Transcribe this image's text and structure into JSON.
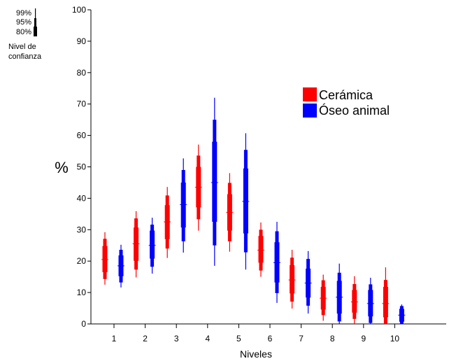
{
  "chart_data": {
    "type": "confidence-interval-bars",
    "title": "",
    "xlabel": "Niveles",
    "ylabel": "%",
    "ylim": [
      0,
      100
    ],
    "yticks": [
      0,
      10,
      20,
      30,
      40,
      50,
      60,
      70,
      80,
      90,
      100
    ],
    "categories": [
      "1",
      "2",
      "3",
      "4",
      "5",
      "6",
      "7",
      "8",
      "9",
      "10"
    ],
    "confidence_key": {
      "title": "Nivel de confianza",
      "title_lines": [
        "Nivel de",
        "confianza"
      ],
      "levels": [
        "99%",
        "95%",
        "80%"
      ]
    },
    "series": [
      {
        "name": "Cerámica",
        "color": "#ff0000",
        "points": [
          {
            "center": 20.5,
            "ci80": [
              16.5,
              24.8
            ],
            "ci95": [
              14.3,
              27.1
            ],
            "ci99": [
              12.5,
              29.2
            ]
          },
          {
            "center": 25.5,
            "ci80": [
              20.1,
              30.7
            ],
            "ci95": [
              17.3,
              33.6
            ],
            "ci99": [
              14.8,
              35.9
            ]
          },
          {
            "center": 32.5,
            "ci80": [
              27.0,
              37.8
            ],
            "ci95": [
              24.0,
              40.9
            ],
            "ci99": [
              21.0,
              43.6
            ]
          },
          {
            "center": 43.5,
            "ci80": [
              37.1,
              50.0
            ],
            "ci95": [
              33.3,
              53.6
            ],
            "ci99": [
              29.7,
              57.1
            ]
          },
          {
            "center": 35.5,
            "ci80": [
              29.7,
              41.3
            ],
            "ci95": [
              26.3,
              44.9
            ],
            "ci99": [
              23.0,
              48.0
            ]
          },
          {
            "center": 23.5,
            "ci80": [
              19.5,
              28.0
            ],
            "ci95": [
              17.0,
              30.0
            ],
            "ci99": [
              15.0,
              32.3
            ]
          },
          {
            "center": 14.0,
            "ci80": [
              9.7,
              18.7
            ],
            "ci95": [
              7.1,
              21.1
            ],
            "ci99": [
              4.9,
              23.6
            ]
          },
          {
            "center": 8.2,
            "ci80": [
              4.6,
              11.8
            ],
            "ci95": [
              2.8,
              13.9
            ],
            "ci99": [
              1.0,
              15.7
            ]
          },
          {
            "center": 7.0,
            "ci80": [
              3.6,
              10.8
            ],
            "ci95": [
              1.6,
              12.7
            ],
            "ci99": [
              0.0,
              15.2
            ]
          },
          {
            "center": 6.5,
            "ci80": [
              2.1,
              11.8
            ],
            "ci95": [
              0.0,
              14.0
            ],
            "ci99": [
              0.0,
              18.0
            ]
          }
        ]
      },
      {
        "name": "Óseo animal",
        "color": "#0000ff",
        "points": [
          {
            "center": 18.5,
            "ci80": [
              15.2,
              21.8
            ],
            "ci95": [
              13.2,
              23.6
            ],
            "ci99": [
              11.6,
              25.2
            ]
          },
          {
            "center": 25.0,
            "ci80": [
              20.8,
              29.7
            ],
            "ci95": [
              18.2,
              31.6
            ],
            "ci99": [
              16.0,
              33.8
            ]
          },
          {
            "center": 38.0,
            "ci80": [
              30.7,
              45.0
            ],
            "ci95": [
              26.3,
              49.0
            ],
            "ci99": [
              22.7,
              52.7
            ]
          },
          {
            "center": 45.0,
            "ci80": [
              32.5,
              58.0
            ],
            "ci95": [
              25.0,
              65.0
            ],
            "ci99": [
              18.5,
              72.0
            ]
          },
          {
            "center": 39.0,
            "ci80": [
              28.8,
              49.5
            ],
            "ci95": [
              22.8,
              55.4
            ],
            "ci99": [
              17.3,
              60.7
            ]
          },
          {
            "center": 19.5,
            "ci80": [
              13.2,
              26.0
            ],
            "ci95": [
              9.8,
              29.5
            ],
            "ci99": [
              6.7,
              32.5
            ]
          },
          {
            "center": 13.0,
            "ci80": [
              8.4,
              17.6
            ],
            "ci95": [
              5.8,
              20.7
            ],
            "ci99": [
              3.3,
              23.2
            ]
          },
          {
            "center": 8.5,
            "ci80": [
              3.3,
              13.7
            ],
            "ci95": [
              0.8,
              16.3
            ],
            "ci99": [
              0.0,
              19.2
            ]
          },
          {
            "center": 6.5,
            "ci80": [
              2.4,
              10.8
            ],
            "ci95": [
              0.3,
              12.6
            ],
            "ci99": [
              0.0,
              14.7
            ]
          },
          {
            "center": 2.8,
            "ci80": [
              0.7,
              4.8
            ],
            "ci95": [
              0.0,
              5.7
            ],
            "ci99": [
              0.0,
              6.2
            ]
          }
        ]
      }
    ],
    "grid": false,
    "legend_position": "top-right"
  }
}
